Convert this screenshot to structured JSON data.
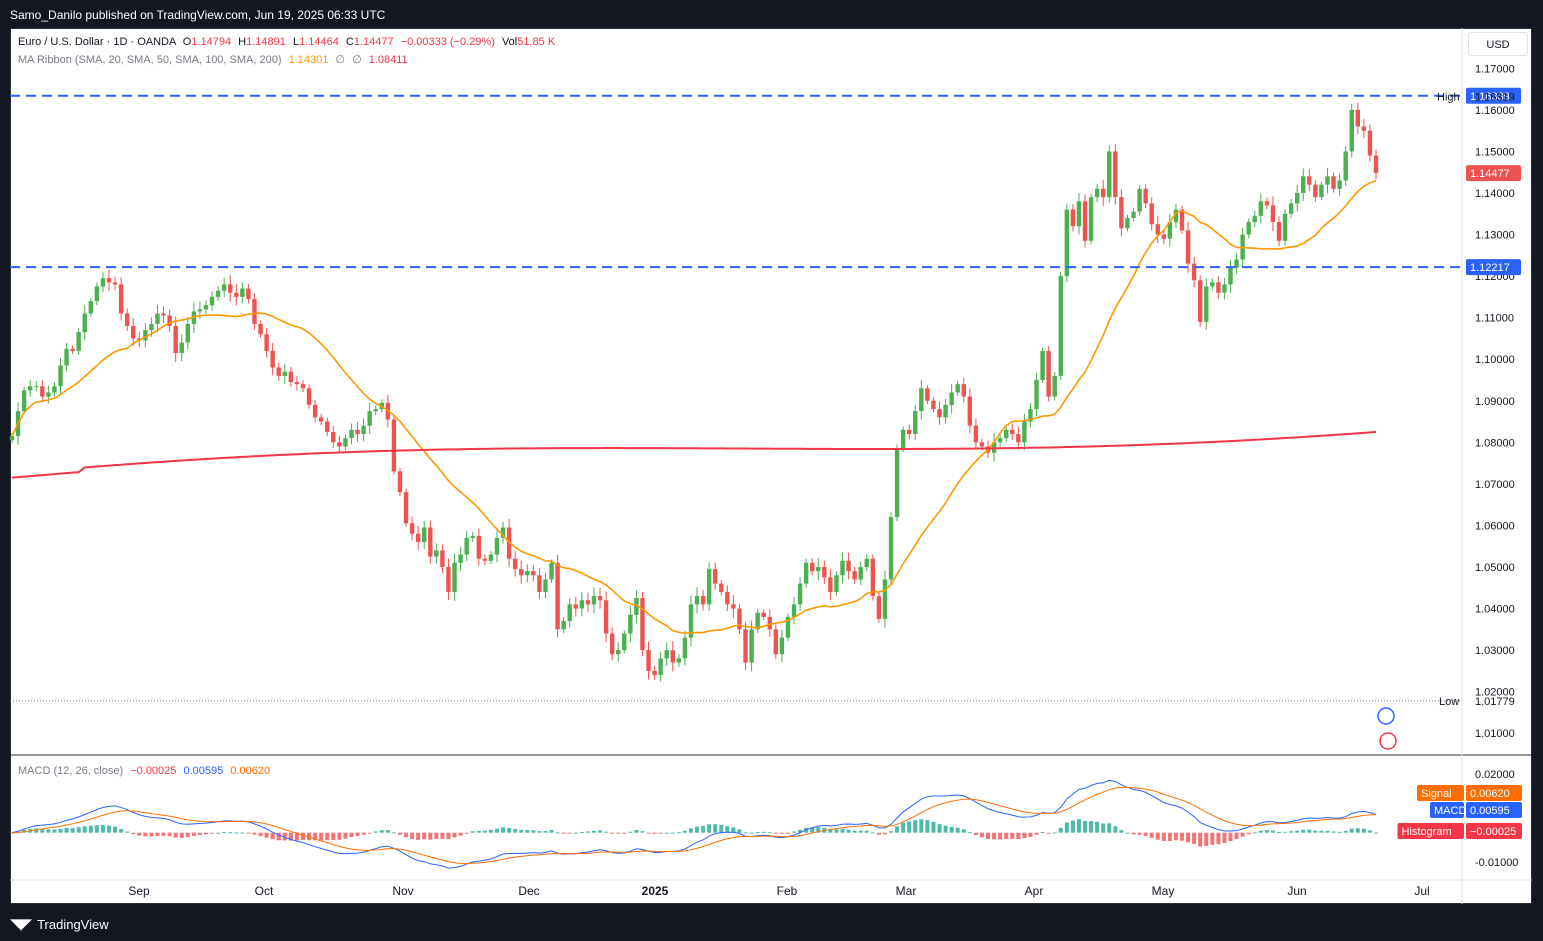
{
  "header": {
    "publisher_line": "Samo_Danilo published on TradingView.com, Jun 19, 2025 06:33 UTC"
  },
  "footer": {
    "brand": "TradingView"
  },
  "currency_button": "USD",
  "legend": {
    "symbol": "Euro / U.S. Dollar · 1D · OANDA",
    "o_label": "O",
    "o": "1.14794",
    "h_label": "H",
    "h": "1.14891",
    "l_label": "L",
    "l": "1.14464",
    "c_label": "C",
    "c": "1.14477",
    "change": "−0.00333 (−0.29%)",
    "vol_label": "Vol",
    "vol": "51.85 K",
    "ma_label": "MA Ribbon (SMA, 20, SMA, 50, SMA, 100, SMA, 200)",
    "ma1": "1.14301",
    "ma_na1": "∅",
    "ma_na2": "∅",
    "ma4": "1.08411",
    "macd_label": "MACD (12, 26, close)",
    "macd_hist": "−0.00025",
    "macd_val": "0.00595",
    "macd_signal": "0.00620"
  },
  "colors": {
    "up": "#26a69a",
    "up_candle": "#4caf50",
    "down": "#ef5350",
    "ma20": "#ff9800",
    "ma200": "#f23645",
    "dash": "#2962ff",
    "macd": "#2962ff",
    "signal": "#ff6d00"
  },
  "chart_data": {
    "type": "candlestick",
    "symbol": "EURUSD",
    "ylim": [
      1.005,
      1.172
    ],
    "y_ticks": [
      "1.17000",
      "1.16000",
      "1.15000",
      "1.14000",
      "1.13000",
      "1.12000",
      "1.11000",
      "1.10000",
      "1.09000",
      "1.08000",
      "1.07000",
      "1.06000",
      "1.05000",
      "1.04000",
      "1.03000",
      "1.02000",
      "1.01000"
    ],
    "x_ticks": [
      "Sep",
      "Oct",
      "Nov",
      "Dec",
      "2025",
      "Feb",
      "Mar",
      "Apr",
      "May",
      "Jun",
      "Jul"
    ],
    "price_labels": {
      "upper_level": "1.16339",
      "high_label": "High",
      "high": "1.16319",
      "last": "1.14477",
      "lower_level": "1.12217",
      "low_label": "Low",
      "low": "1.01779"
    },
    "horizontal_levels": [
      1.16339,
      1.12217
    ],
    "high": 1.16319,
    "low": 1.01779,
    "last": 1.14477,
    "closes": [
      1.0815,
      1.0875,
      1.0925,
      1.0935,
      1.0935,
      1.091,
      1.092,
      1.0935,
      1.0985,
      1.1025,
      1.102,
      1.1065,
      1.111,
      1.114,
      1.1175,
      1.1195,
      1.1185,
      1.118,
      1.111,
      1.108,
      1.105,
      1.1045,
      1.107,
      1.1085,
      1.111,
      1.1105,
      1.108,
      1.1015,
      1.104,
      1.1085,
      1.1115,
      1.112,
      1.113,
      1.115,
      1.1165,
      1.118,
      1.116,
      1.115,
      1.117,
      1.1145,
      1.1085,
      1.106,
      1.102,
      1.098,
      1.096,
      1.097,
      1.0945,
      1.094,
      1.093,
      1.089,
      1.086,
      1.085,
      1.0825,
      1.08,
      1.079,
      1.081,
      1.083,
      1.082,
      1.084,
      1.0875,
      1.088,
      1.0895,
      1.0855,
      1.073,
      1.068,
      1.0605,
      1.058,
      1.056,
      1.0595,
      1.0525,
      1.054,
      1.05,
      1.044,
      1.051,
      1.053,
      1.057,
      1.0575,
      1.052,
      1.0515,
      1.053,
      1.057,
      1.0595,
      1.052,
      1.0495,
      1.048,
      1.049,
      1.048,
      1.044,
      1.047,
      1.051,
      1.035,
      1.037,
      1.041,
      1.04,
      1.042,
      1.041,
      1.043,
      1.042,
      1.034,
      1.029,
      1.03,
      1.034,
      1.0385,
      1.0425,
      1.03,
      1.025,
      1.024,
      1.028,
      1.03,
      1.027,
      1.028,
      1.033,
      1.041,
      1.043,
      1.041,
      1.0495,
      1.046,
      1.044,
      1.041,
      1.04,
      1.035,
      1.027,
      1.035,
      1.039,
      1.038,
      1.035,
      1.029,
      1.033,
      1.038,
      1.041,
      1.046,
      1.051,
      1.049,
      1.05,
      1.0475,
      1.044,
      1.048,
      1.0515,
      1.049,
      1.047,
      1.05,
      1.052,
      1.043,
      1.0375,
      1.047,
      1.062,
      1.0785,
      1.083,
      1.082,
      1.0875,
      1.093,
      1.09,
      1.088,
      1.086,
      1.089,
      1.092,
      1.094,
      1.091,
      1.084,
      1.08,
      1.079,
      1.0775,
      1.08,
      1.081,
      1.083,
      1.082,
      1.08,
      1.085,
      1.088,
      1.095,
      1.102,
      1.091,
      1.096,
      1.12,
      1.136,
      1.132,
      1.138,
      1.1285,
      1.139,
      1.141,
      1.139,
      1.15,
      1.139,
      1.1315,
      1.134,
      1.1355,
      1.141,
      1.1375,
      1.1325,
      1.13,
      1.129,
      1.133,
      1.136,
      1.131,
      1.123,
      1.119,
      1.109,
      1.1175,
      1.1185,
      1.116,
      1.118,
      1.122,
      1.124,
      1.13,
      1.133,
      1.1345,
      1.138,
      1.137,
      1.133,
      1.1285,
      1.135,
      1.1375,
      1.14,
      1.144,
      1.142,
      1.139,
      1.142,
      1.144,
      1.141,
      1.143,
      1.15,
      1.16,
      1.156,
      1.155,
      1.149,
      1.1448
    ]
  }
}
